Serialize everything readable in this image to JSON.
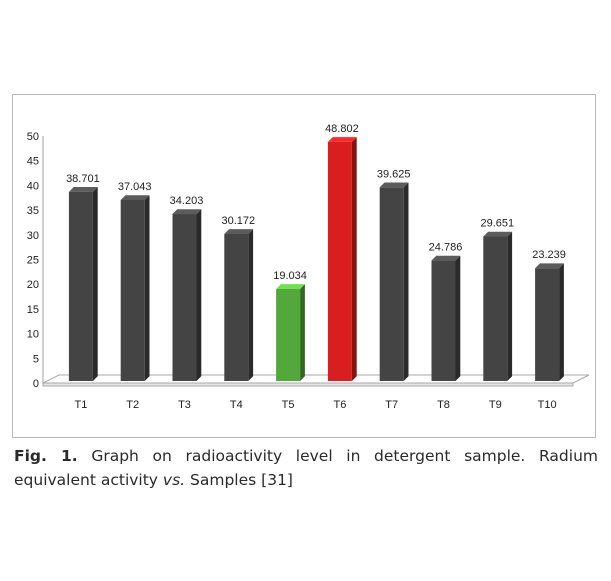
{
  "chart_data": {
    "type": "bar",
    "style": "3d-column",
    "categories": [
      "T1",
      "T2",
      "T3",
      "T4",
      "T5",
      "T6",
      "T7",
      "T8",
      "T9",
      "T10"
    ],
    "values": [
      38.701,
      37.043,
      34.203,
      30.172,
      19.034,
      48.802,
      39.625,
      24.786,
      29.651,
      23.239
    ],
    "data_labels": [
      "38.701",
      "37.043",
      "34.203",
      "30.172",
      "19.034",
      "48.802",
      "39.625",
      "24.786",
      "29.651",
      "23.239"
    ],
    "ylim": [
      0,
      50
    ],
    "yticks": [
      0,
      5,
      10,
      15,
      20,
      25,
      30,
      35,
      40,
      45,
      50
    ],
    "title": "",
    "xlabel": "",
    "ylabel": "",
    "grid": false,
    "legend": "none",
    "colors": {
      "default": "#444444",
      "T5": "#52a83a",
      "T6": "#d81e1e"
    }
  },
  "caption": {
    "label": "Fig. 1.",
    "text_before_italic": " Graph on radioactivity level in detergent sample. Radium equivalent activity ",
    "italic": "vs.",
    "text_after_italic": " Samples [31]"
  }
}
